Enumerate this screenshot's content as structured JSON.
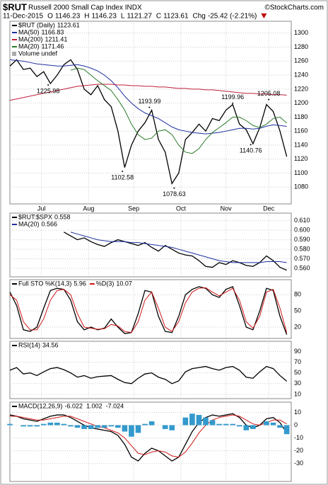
{
  "header": {
    "symbol": "$RUT",
    "name": "Russell 2000 Small Cap Index INDX",
    "credit": "©StockCharts.com",
    "date": "11-Dec-2015",
    "quote": [
      {
        "label": "O",
        "value": 1146.23
      },
      {
        "label": "H",
        "value": 1146.23
      },
      {
        "label": "L",
        "value": 1121.27
      },
      {
        "label": "C",
        "value": 1123.61
      },
      {
        "label": "Chg",
        "value": -25.42,
        "value_label": "-25.42 (-2.21%)"
      }
    ]
  },
  "chart_data": [
    {
      "type": "line",
      "legend": "column",
      "legend_note": "Volume undef",
      "x": [
        0,
        3,
        6,
        9,
        12,
        15,
        18,
        21,
        24,
        27,
        30,
        33,
        36,
        39,
        42,
        45,
        48,
        51,
        54,
        57,
        60,
        63,
        66,
        69,
        72,
        75,
        78,
        81,
        84,
        87,
        90,
        93,
        96,
        99,
        102,
        105,
        108,
        111,
        114,
        117,
        120,
        123
      ],
      "xlim": [
        0,
        125
      ],
      "xticks": [
        {
          "value": 14,
          "label": "Jul"
        },
        {
          "value": 35,
          "label": "Aug"
        },
        {
          "value": 55,
          "label": "Sep"
        },
        {
          "value": 76,
          "label": "Oct"
        },
        {
          "value": 96,
          "label": "Nov"
        },
        {
          "value": 115,
          "label": "Dec"
        }
      ],
      "ylim": [
        1056,
        1317
      ],
      "yticks": [
        1080,
        1100,
        1120,
        1140,
        1160,
        1180,
        1200,
        1220,
        1240,
        1260,
        1280,
        1300
      ],
      "series": [
        {
          "name": "$RUT (Daily)",
          "color": "#000000",
          "values": [
            1253,
            1262,
            1248,
            1250,
            1238,
            1245,
            1228,
            1240,
            1255,
            1262,
            1248,
            1220,
            1212,
            1225,
            1205,
            1195,
            1160,
            1108,
            1140,
            1160,
            1172,
            1190,
            1148,
            1130,
            1085,
            1100,
            1148,
            1158,
            1170,
            1160,
            1178,
            1175,
            1190,
            1198,
            1170,
            1162,
            1142,
            1165,
            1198,
            1188,
            1160,
            1123.61
          ]
        },
        {
          "name": "MA(50)",
          "color": "#1f2fa0",
          "values": [
            1262,
            1261,
            1260,
            1258,
            1256,
            1255,
            1254,
            1253,
            1253,
            1254,
            1255,
            1253,
            1250,
            1246,
            1240,
            1232,
            1222,
            1210,
            1200,
            1192,
            1186,
            1182,
            1178,
            1172,
            1166,
            1162,
            1160,
            1158,
            1157,
            1156,
            1157,
            1158,
            1160,
            1162,
            1164,
            1164,
            1163,
            1164,
            1167,
            1169,
            1168,
            1166.83
          ]
        },
        {
          "name": "MA(200)",
          "color": "#c0203a",
          "values": [
            1204,
            1206,
            1208,
            1210,
            1212,
            1214,
            1216,
            1218,
            1220,
            1222,
            1224,
            1225,
            1226,
            1227,
            1227,
            1227,
            1226,
            1226,
            1225,
            1225,
            1224,
            1224,
            1223,
            1223,
            1222,
            1221,
            1221,
            1220,
            1220,
            1219,
            1219,
            1218,
            1217,
            1216,
            1215,
            1214,
            1214,
            1213,
            1213,
            1212,
            1212,
            1211.41
          ]
        },
        {
          "name": "MA(20)",
          "color": "#2a7a2a",
          "values": [
            null,
            null,
            null,
            null,
            null,
            null,
            null,
            null,
            null,
            1247,
            1250,
            1248,
            1240,
            1232,
            1225,
            1218,
            1205,
            1190,
            1170,
            1155,
            1148,
            1150,
            1160,
            1162,
            1155,
            1140,
            1130,
            1128,
            1135,
            1148,
            1158,
            1165,
            1172,
            1180,
            1180,
            1175,
            1168,
            1165,
            1170,
            1178,
            1180,
            1171.46
          ]
        }
      ],
      "annotations": [
        {
          "x": 17,
          "value": 1225.98
        },
        {
          "x": 50,
          "value": 1102.58
        },
        {
          "x": 62,
          "value": 1193.99
        },
        {
          "x": 73,
          "value": 1078.63
        },
        {
          "x": 99,
          "value": 1199.96
        },
        {
          "x": 107,
          "value": 1140.76
        },
        {
          "x": 115,
          "value": 1205.08
        }
      ]
    },
    {
      "type": "line",
      "legend": "column",
      "x": [
        0,
        3,
        6,
        9,
        12,
        15,
        18,
        21,
        24,
        27,
        30,
        33,
        36,
        39,
        42,
        45,
        48,
        51,
        54,
        57,
        60,
        63,
        66,
        69,
        72,
        75,
        78,
        81,
        84,
        87,
        90,
        93,
        96,
        99,
        102,
        105,
        108,
        111,
        114,
        117,
        120,
        123
      ],
      "xlim": [
        0,
        125
      ],
      "ylim": [
        0.551,
        0.618
      ],
      "yticks": [
        {
          "value": 0.56,
          "label": "0.560"
        },
        {
          "value": 0.57,
          "label": "0.570"
        },
        {
          "value": 0.58,
          "label": "0.580"
        },
        {
          "value": 0.59,
          "label": "0.590"
        },
        {
          "value": 0.6,
          "label": "0.600"
        },
        {
          "value": 0.61,
          "label": "0.610"
        }
      ],
      "series": [
        {
          "name": "$RUT:$SPX",
          "color": "#000000",
          "values": [
            null,
            null,
            null,
            null,
            null,
            null,
            null,
            null,
            0.598,
            0.594,
            0.59,
            0.592,
            0.588,
            0.585,
            0.583,
            0.587,
            0.59,
            0.588,
            0.586,
            0.584,
            0.587,
            0.582,
            0.578,
            0.584,
            0.58,
            0.576,
            0.574,
            0.573,
            0.568,
            0.562,
            0.561,
            0.566,
            0.564,
            0.568,
            0.566,
            0.563,
            0.562,
            0.566,
            0.573,
            0.568,
            0.561,
            0.558
          ]
        },
        {
          "name": "MA(20)",
          "color": "#1f2fa0",
          "values": [
            null,
            null,
            null,
            null,
            null,
            null,
            null,
            null,
            null,
            0.598,
            0.596,
            0.594,
            0.592,
            0.59,
            0.589,
            0.588,
            0.588,
            0.588,
            0.587,
            0.587,
            0.586,
            0.585,
            0.584,
            0.583,
            0.582,
            0.58,
            0.578,
            0.576,
            0.574,
            0.572,
            0.57,
            0.568,
            0.567,
            0.566,
            0.566,
            0.566,
            0.566,
            0.566,
            0.567,
            0.567,
            0.567,
            0.566
          ]
        }
      ]
    },
    {
      "type": "line",
      "legend": "row",
      "x": [
        0,
        3,
        6,
        9,
        12,
        15,
        18,
        21,
        24,
        27,
        30,
        33,
        36,
        39,
        42,
        45,
        48,
        51,
        54,
        57,
        60,
        63,
        66,
        69,
        72,
        75,
        78,
        81,
        84,
        87,
        90,
        93,
        96,
        99,
        102,
        105,
        108,
        111,
        114,
        117,
        120,
        123
      ],
      "xlim": [
        0,
        125
      ],
      "ylim": [
        -1,
        108
      ],
      "yticks": [
        20,
        50,
        80
      ],
      "series": [
        {
          "name": "Full STO %K(14,3)",
          "color": "#000000",
          "values": [
            85,
            60,
            15,
            12,
            20,
            55,
            88,
            92,
            90,
            70,
            30,
            15,
            20,
            15,
            18,
            35,
            20,
            8,
            10,
            45,
            88,
            85,
            40,
            12,
            10,
            40,
            80,
            90,
            95,
            92,
            80,
            75,
            90,
            95,
            60,
            20,
            15,
            50,
            92,
            88,
            40,
            5.96
          ]
        },
        {
          "name": "%D(3)",
          "color": "#d01818",
          "values": [
            80,
            70,
            30,
            15,
            15,
            35,
            70,
            88,
            90,
            80,
            45,
            20,
            18,
            16,
            17,
            25,
            22,
            12,
            10,
            30,
            70,
            85,
            55,
            20,
            12,
            30,
            65,
            85,
            92,
            93,
            85,
            78,
            85,
            92,
            70,
            30,
            18,
            40,
            85,
            90,
            55,
            10.07
          ]
        }
      ]
    },
    {
      "type": "line",
      "legend": "row",
      "x": [
        0,
        3,
        6,
        9,
        12,
        15,
        18,
        21,
        24,
        27,
        30,
        33,
        36,
        39,
        42,
        45,
        48,
        51,
        54,
        57,
        60,
        63,
        66,
        69,
        72,
        75,
        78,
        81,
        84,
        87,
        90,
        93,
        96,
        99,
        102,
        105,
        108,
        111,
        114,
        117,
        120,
        123
      ],
      "xlim": [
        0,
        125
      ],
      "ylim": [
        2,
        109
      ],
      "yticks": [
        10,
        30,
        50,
        70,
        90
      ],
      "series": [
        {
          "name": "RSI(14)",
          "color": "#000000",
          "values": [
            55,
            60,
            48,
            50,
            45,
            52,
            58,
            60,
            56,
            50,
            42,
            45,
            40,
            43,
            44,
            45,
            38,
            32,
            30,
            40,
            48,
            50,
            42,
            38,
            30,
            35,
            52,
            58,
            60,
            62,
            58,
            55,
            60,
            62,
            55,
            42,
            40,
            52,
            62,
            58,
            45,
            34.56
          ]
        }
      ]
    },
    {
      "type": "line",
      "legend": "row",
      "x": [
        0,
        3,
        6,
        9,
        12,
        15,
        18,
        21,
        24,
        27,
        30,
        33,
        36,
        39,
        42,
        45,
        48,
        51,
        54,
        57,
        60,
        63,
        66,
        69,
        72,
        75,
        78,
        81,
        84,
        87,
        90,
        93,
        96,
        99,
        102,
        105,
        108,
        111,
        114,
        117,
        120,
        123
      ],
      "xlim": [
        0,
        125
      ],
      "ylim": [
        -44,
        18
      ],
      "yticks": [
        -30,
        -20,
        -10,
        0,
        10
      ],
      "series": [
        {
          "name": "MACD(12,26,9)",
          "color": "#000000",
          "values": [
            8,
            7,
            5,
            4,
            3,
            5,
            7,
            8,
            8,
            6,
            3,
            0,
            -2,
            -3,
            -4,
            -5,
            -8,
            -15,
            -25,
            -28,
            -22,
            -18,
            -20,
            -24,
            -28,
            -25,
            -15,
            -5,
            2,
            6,
            8,
            7,
            8,
            9,
            6,
            0,
            -2,
            0,
            5,
            6,
            2,
            -6.022
          ]
        },
        {
          "color": "#d01818",
          "values": [
            7,
            7,
            6,
            5,
            4,
            4,
            5,
            6,
            7,
            7,
            5,
            3,
            1,
            -1,
            -2,
            -4,
            -6,
            -10,
            -16,
            -22,
            -23,
            -21,
            -20,
            -21,
            -24,
            -25,
            -21,
            -14,
            -6,
            0,
            4,
            6,
            7,
            8,
            7,
            4,
            1,
            0,
            2,
            4,
            4,
            1.002
          ]
        },
        {
          "color": "#3399cc",
          "type": "bar",
          "values": [
            1,
            0,
            -1,
            -1,
            -1,
            1,
            2,
            2,
            1,
            -1,
            -2,
            -3,
            -3,
            -2,
            -2,
            -1,
            -2,
            -5,
            -9,
            -6,
            1,
            3,
            0,
            -3,
            -4,
            0,
            6,
            9,
            8,
            6,
            4,
            1,
            1,
            1,
            -1,
            -4,
            -3,
            0,
            3,
            2,
            -2,
            -7.024
          ]
        }
      ]
    }
  ]
}
